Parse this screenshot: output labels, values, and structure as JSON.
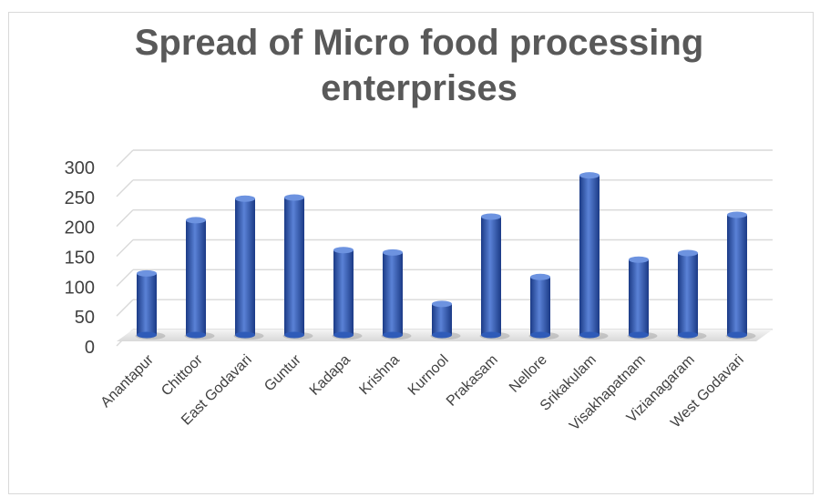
{
  "chart_data": {
    "type": "bar",
    "title_lines": [
      "Spread of Micro food processing",
      "enterprises"
    ],
    "categories": [
      "Anantapur",
      "Chittoor",
      "East Godavari",
      "Guntur",
      "Kadapa",
      "Krishna",
      "Kurnool",
      "Prakasam",
      "Nellore",
      "Srikakulam",
      "Visakhapatnam",
      "Vizianagaram",
      "West Godavari"
    ],
    "values": [
      103,
      192,
      228,
      230,
      142,
      138,
      52,
      198,
      97,
      267,
      126,
      137,
      201
    ],
    "ylim": [
      0,
      300
    ],
    "yticks": [
      0,
      50,
      100,
      150,
      200,
      250,
      300
    ],
    "grid": true,
    "legend": "none",
    "colors": {
      "bar_light": "#5a82d6",
      "bar_mid": "#2f5bb8",
      "bar_dark": "#1b3a86",
      "grid": "#d9d9d9",
      "text": "#404040"
    }
  }
}
